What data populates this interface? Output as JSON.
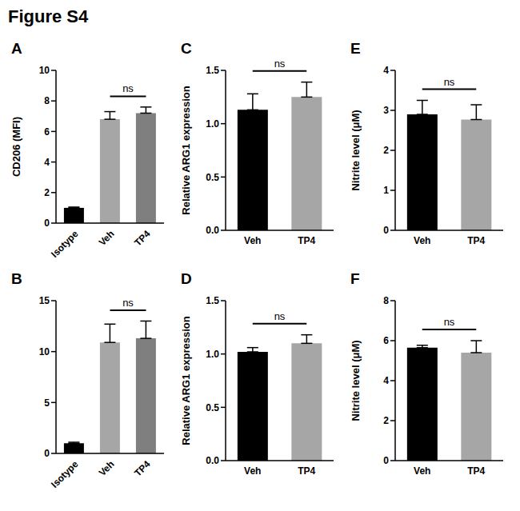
{
  "title": "Figure S4",
  "chart_data": [
    {
      "type": "bar",
      "title": "A",
      "y_label": "CD206 (MFI)",
      "categories": [
        "Isotype",
        "Veh",
        "TP4"
      ],
      "values": [
        1.0,
        6.8,
        7.2
      ],
      "errors": [
        0.05,
        0.5,
        0.4
      ],
      "colors": [
        "#000000",
        "#a6a6a6",
        "#7f7f7f"
      ],
      "ylim": [
        0,
        10
      ],
      "yticks": [
        0,
        2,
        4,
        6,
        8,
        10
      ],
      "annotations": [
        {
          "text": "ns",
          "between": [
            "Veh",
            "TP4"
          ]
        }
      ]
    },
    {
      "type": "bar",
      "title": "B",
      "y_label": "",
      "categories": [
        "Isotype",
        "Veh",
        "TP4"
      ],
      "values": [
        1.0,
        10.9,
        11.3
      ],
      "errors": [
        0.1,
        1.8,
        1.7
      ],
      "colors": [
        "#000000",
        "#a6a6a6",
        "#7f7f7f"
      ],
      "ylim": [
        0,
        15
      ],
      "yticks": [
        0,
        5,
        10,
        15
      ],
      "annotations": [
        {
          "text": "ns",
          "between": [
            "Veh",
            "TP4"
          ]
        }
      ]
    },
    {
      "type": "bar",
      "title": "C",
      "y_label": "Relative ARG1 expression",
      "categories": [
        "Veh",
        "TP4"
      ],
      "values": [
        1.13,
        1.25
      ],
      "errors": [
        0.15,
        0.14
      ],
      "colors": [
        "#000000",
        "#a6a6a6"
      ],
      "ylim": [
        0,
        1.5
      ],
      "yticks": [
        {
          "value": 0,
          "label": "0.0"
        },
        0.5,
        {
          "value": 1,
          "label": "1.0"
        },
        1.5
      ],
      "annotations": [
        {
          "text": "ns",
          "between": [
            "Veh",
            "TP4"
          ]
        }
      ]
    },
    {
      "type": "bar",
      "title": "D",
      "y_label": "Relative ARG1 expression",
      "categories": [
        "Veh",
        "TP4"
      ],
      "values": [
        1.02,
        1.1
      ],
      "errors": [
        0.04,
        0.08
      ],
      "colors": [
        "#000000",
        "#a6a6a6"
      ],
      "ylim": [
        0,
        1.5
      ],
      "yticks": [
        {
          "value": 0,
          "label": "0.0"
        },
        0.5,
        {
          "value": 1,
          "label": "1.0"
        },
        1.5
      ],
      "annotations": [
        {
          "text": "ns",
          "between": [
            "Veh",
            "TP4"
          ]
        }
      ]
    },
    {
      "type": "bar",
      "title": "E",
      "y_label": "Nitrite level (μM)",
      "categories": [
        "Veh",
        "TP4"
      ],
      "values": [
        2.9,
        2.77
      ],
      "errors": [
        0.35,
        0.37
      ],
      "colors": [
        "#000000",
        "#a6a6a6"
      ],
      "ylim": [
        0,
        4
      ],
      "yticks": [
        0,
        1,
        2,
        3,
        4
      ],
      "annotations": [
        {
          "text": "ns",
          "between": [
            "Veh",
            "TP4"
          ]
        }
      ]
    },
    {
      "type": "bar",
      "title": "F",
      "y_label": "Nitrite level (μM)",
      "categories": [
        "Veh",
        "TP4"
      ],
      "values": [
        5.65,
        5.4
      ],
      "errors": [
        0.12,
        0.6
      ],
      "colors": [
        "#000000",
        "#a6a6a6"
      ],
      "ylim": [
        0,
        8
      ],
      "yticks": [
        0,
        2,
        4,
        6,
        8
      ],
      "annotations": [
        {
          "text": "ns",
          "between": [
            "Veh",
            "TP4"
          ]
        }
      ]
    }
  ]
}
